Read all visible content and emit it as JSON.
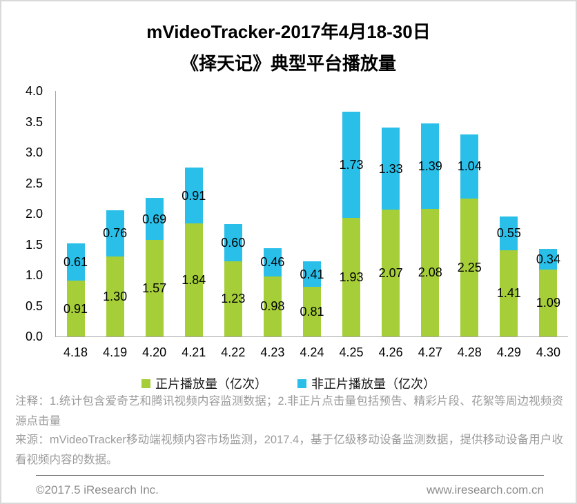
{
  "title": {
    "line1": "mVideoTracker-2017年4月18-30日",
    "line2": "《择天记》典型平台播放量"
  },
  "chart_data": {
    "type": "bar",
    "stacked": true,
    "title": "mVideoTracker-2017年4月18-30日《择天记》典型平台播放量",
    "categories": [
      "4.18",
      "4.19",
      "4.20",
      "4.21",
      "4.22",
      "4.23",
      "4.24",
      "4.25",
      "4.26",
      "4.27",
      "4.28",
      "4.29",
      "4.30"
    ],
    "series": [
      {
        "name": "正片播放量（亿次）",
        "color": "#a5ce39",
        "values": [
          0.91,
          1.3,
          1.57,
          1.84,
          1.23,
          0.98,
          0.81,
          1.93,
          2.07,
          2.08,
          2.25,
          1.41,
          1.09
        ]
      },
      {
        "name": "非正片播放量（亿次）",
        "color": "#29bfe9",
        "values": [
          0.61,
          0.76,
          0.69,
          0.91,
          0.6,
          0.46,
          0.41,
          1.73,
          1.33,
          1.39,
          1.04,
          0.55,
          0.34
        ]
      }
    ],
    "xlabel": "",
    "ylabel": "",
    "ylim": [
      0,
      4.0
    ],
    "ytick_step": 0.5,
    "grid": false,
    "legend_position": "bottom",
    "value_labels": "inside-segment-center"
  },
  "notes": "注释：1.统计包含爱奇艺和腾讯视频内容监测数据；2.非正片点击量包括预告、精彩片段、花絮等周边视频资源点击量",
  "source": "来源：mVideoTracker移动端视频内容市场监测，2017.4，基于亿级移动设备监测数据，提供移动设备用户收看视频内容的数据。",
  "footer": {
    "left": "©2017.5 iResearch Inc.",
    "right": "www.iresearch.com.cn"
  }
}
